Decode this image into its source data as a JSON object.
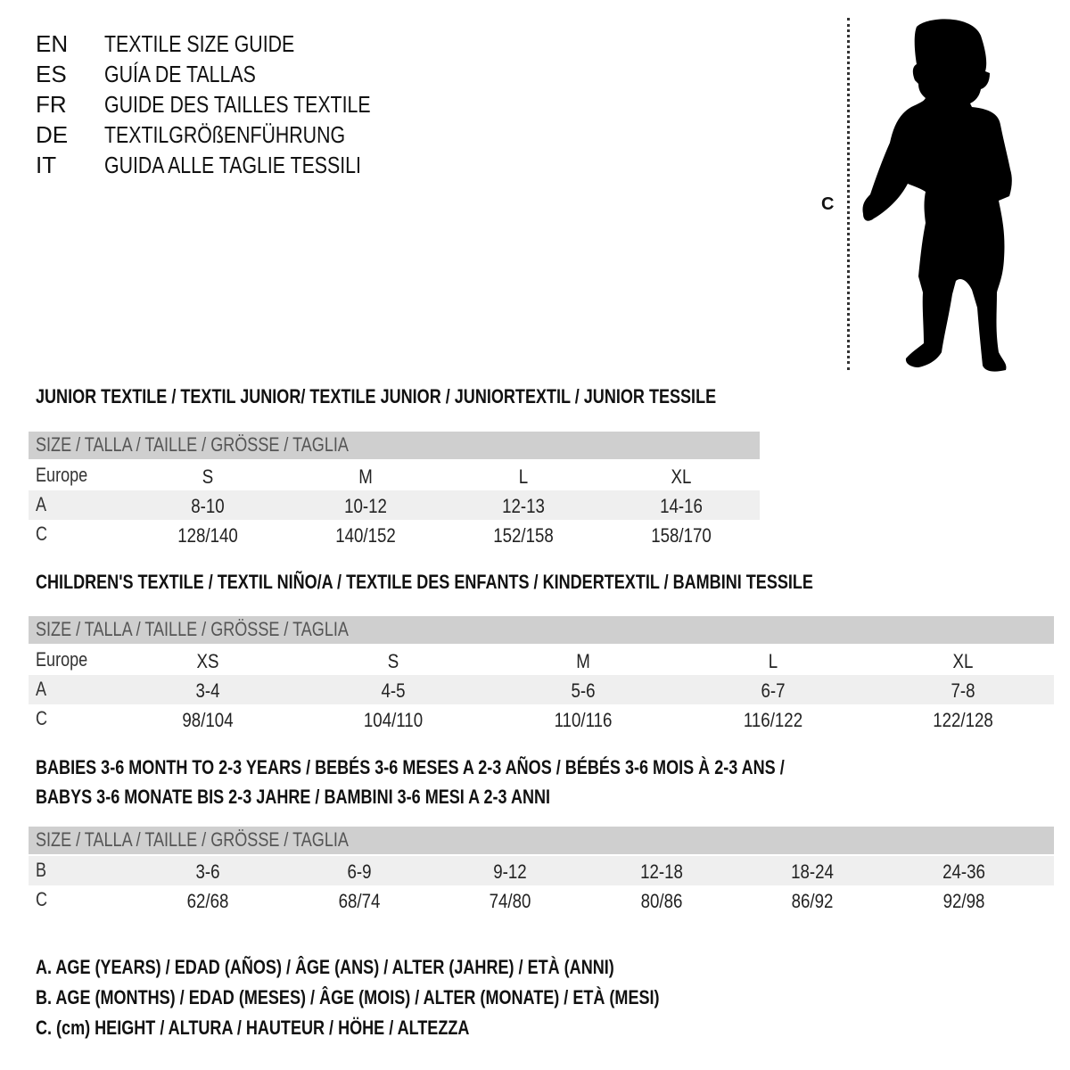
{
  "titles": [
    {
      "code": "EN",
      "text": "TEXTILE SIZE GUIDE"
    },
    {
      "code": "ES",
      "text": "GUÍA DE TALLAS"
    },
    {
      "code": "FR",
      "text": "GUIDE DES TAILLES TEXTILE"
    },
    {
      "code": "DE",
      "text": "TEXTILGRÖßENFÜHRUNG"
    },
    {
      "code": "IT",
      "text": "GUIDA ALLE TAGLIE TESSILI"
    }
  ],
  "figure": {
    "measure_label": "C",
    "icon": "child-silhouette-icon"
  },
  "colors": {
    "header_row": "#cfcfcf",
    "alt_row": "#efefef"
  },
  "sections": [
    {
      "heading": [
        "JUNIOR TEXTILE / TEXTIL JUNIOR/ TEXTILE JUNIOR / JUNIORTEXTIL / JUNIOR TESSILE"
      ],
      "header": "SIZE / TALLA / TAILLE / GRÖSSE / TAGLIA",
      "rows": [
        {
          "label": "Europe",
          "values": [
            "S",
            "M",
            "L",
            "XL"
          ]
        },
        {
          "label": "A",
          "values": [
            "8-10",
            "10-12",
            "12-13",
            "14-16"
          ]
        },
        {
          "label": "C",
          "values": [
            "128/140",
            "140/152",
            "152/158",
            "158/170"
          ]
        }
      ]
    },
    {
      "heading": [
        "CHILDREN'S TEXTILE / TEXTIL NIÑO/A / TEXTILE DES ENFANTS / KINDERTEXTIL / BAMBINI TESSILE"
      ],
      "header": "SIZE / TALLA / TAILLE / GRÖSSE / TAGLIA",
      "rows": [
        {
          "label": "Europe",
          "values": [
            "XS",
            "S",
            "M",
            "L",
            "XL"
          ]
        },
        {
          "label": "A",
          "values": [
            "3-4",
            "4-5",
            "5-6",
            "6-7",
            "7-8"
          ]
        },
        {
          "label": "C",
          "values": [
            "98/104",
            "104/110",
            "110/116",
            "116/122",
            "122/128"
          ]
        }
      ]
    },
    {
      "heading": [
        "BABIES 3-6 MONTH TO 2-3 YEARS / BEBÉS 3-6 MESES A 2-3 AÑOS / BÉBÉS 3-6 MOIS À 2-3 ANS /",
        "BABYS 3-6 MONATE BIS 2-3 JAHRE / BAMBINI 3-6 MESI A 2-3 ANNI"
      ],
      "header": "SIZE / TALLA / TAILLE / GRÖSSE / TAGLIA",
      "rows": [
        {
          "label": "B",
          "values": [
            "3-6",
            "6-9",
            "9-12",
            "12-18",
            "18-24",
            "24-36"
          ]
        },
        {
          "label": "C",
          "values": [
            "62/68",
            "68/74",
            "74/80",
            "80/86",
            "86/92",
            "92/98"
          ]
        }
      ]
    }
  ],
  "legend": [
    "A. AGE (YEARS) / EDAD (AÑOS) / ÂGE (ANS) / ALTER (JAHRE) / ETÀ (ANNI)",
    "B. AGE (MONTHS) / EDAD (MESES) / ÂGE (MOIS) / ALTER (MONATE) / ETÀ (MESI)",
    "C. (cm) HEIGHT / ALTURA / HAUTEUR / HÖHE / ALTEZZA"
  ]
}
